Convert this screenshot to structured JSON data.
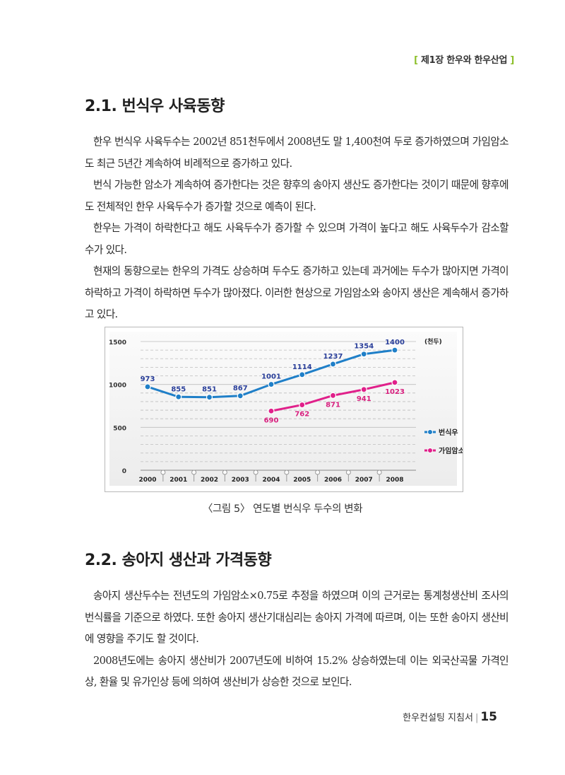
{
  "header": {
    "open": "[",
    "chapter": "제1장 한우와 한우산업",
    "close": "]"
  },
  "section1": {
    "title": "2.1. 번식우 사육동향",
    "paragraphs": [
      "한우 번식우 사육두수는 2002년 851천두에서 2008년도 말 1,400천여 두로 증가하였으며 가임암소도 최근 5년간 계속하여 비례적으로 증가하고 있다.",
      "번식 가능한 암소가 계속하여 증가한다는 것은 향후의 송아지 생산도 증가한다는 것이기 때문에 향후에도 전체적인 한우 사육두수가 증가할 것으로 예측이 된다.",
      "한우는 가격이 하락한다고 해도 사육두수가 증가할 수 있으며 가격이 높다고 해도 사육두수가 감소할 수가 있다.",
      "현재의 동향으로는 한우의 가격도 상승하며 두수도 증가하고 있는데 과거에는 두수가 많아지면 가격이 하락하고 가격이 하락하면 두수가 많아졌다. 이러한 현상으로 가임암소와 송아지 생산은 계속해서 증가하고 있다."
    ]
  },
  "figure": {
    "caption": "〈그림 5〉 연도별 번식우 두수의 변화"
  },
  "chart_data": {
    "type": "line",
    "unit_label": "(천두)",
    "x": [
      "2000",
      "2001",
      "2002",
      "2003",
      "2004",
      "2005",
      "2006",
      "2007",
      "2008"
    ],
    "ylim": [
      0,
      1500
    ],
    "yticks": [
      "0",
      "500",
      "1000",
      "1500"
    ],
    "grid": true,
    "legend": "right",
    "series": [
      {
        "name": "번식우",
        "color": "#1f7fc8",
        "label_color": "#2a3f9a",
        "values": [
          973,
          855,
          851,
          867,
          1001,
          1114,
          1237,
          1354,
          1400
        ]
      },
      {
        "name": "가임암소",
        "color": "#e0208a",
        "label_color": "#d8207f",
        "values": [
          null,
          null,
          null,
          null,
          690,
          762,
          871,
          941,
          1023
        ]
      }
    ]
  },
  "section2": {
    "title": "2.2. 송아지 생산과 가격동향",
    "paragraphs": [
      "송아지 생산두수는 전년도의 가임암소×0.75로 추정을 하였으며 이의 근거로는 통계청생산비 조사의 번식률을 기준으로 하였다. 또한 송아지 생산기대심리는 송아지 가격에 따르며, 이는 또한 송아지 생산비에 영향을 주기도 할 것이다.",
      "2008년도에는 송아지 생산비가 2007년도에 비하여 15.2% 상승하였는데 이는 외국산곡물 가격인상, 환율 및 유가인상 등에 의하여 생산비가 상승한 것으로 보인다."
    ]
  },
  "footer": {
    "book": "한우컨설팅 지침서",
    "separator": "|",
    "page": "15"
  }
}
